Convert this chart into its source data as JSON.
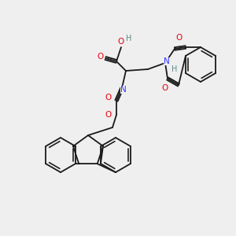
{
  "bg_color": "#efefef",
  "line_color": "#1a1a1a",
  "bond_lw": 1.3,
  "atom_colors": {
    "O": "#e8000d",
    "N": "#3333ff",
    "H": "#5a8a8a",
    "C": "#1a1a1a"
  },
  "font_size": 7.5
}
